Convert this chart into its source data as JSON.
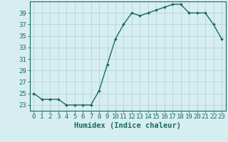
{
  "x": [
    0,
    1,
    2,
    3,
    4,
    5,
    6,
    7,
    8,
    9,
    10,
    11,
    12,
    13,
    14,
    15,
    16,
    17,
    18,
    19,
    20,
    21,
    22,
    23
  ],
  "y": [
    25,
    24,
    24,
    24,
    23,
    23,
    23,
    23,
    25.5,
    30,
    34.5,
    37,
    39,
    38.5,
    39,
    39.5,
    40,
    40.5,
    40.5,
    39,
    39,
    39,
    37,
    34.5
  ],
  "line_color": "#1a6b5a",
  "marker": "D",
  "marker_size": 2.0,
  "bg_color": "#d6eef0",
  "grid_color": "#b0cfd4",
  "xlabel": "Humidex (Indice chaleur)",
  "ylim": [
    22,
    41
  ],
  "xlim": [
    -0.5,
    23.5
  ],
  "yticks": [
    23,
    25,
    27,
    29,
    31,
    33,
    35,
    37,
    39
  ],
  "xticks": [
    0,
    1,
    2,
    3,
    4,
    5,
    6,
    7,
    8,
    9,
    10,
    11,
    12,
    13,
    14,
    15,
    16,
    17,
    18,
    19,
    20,
    21,
    22,
    23
  ],
  "xlabel_fontsize": 7.5,
  "tick_fontsize": 6.5,
  "line_width": 1.0
}
